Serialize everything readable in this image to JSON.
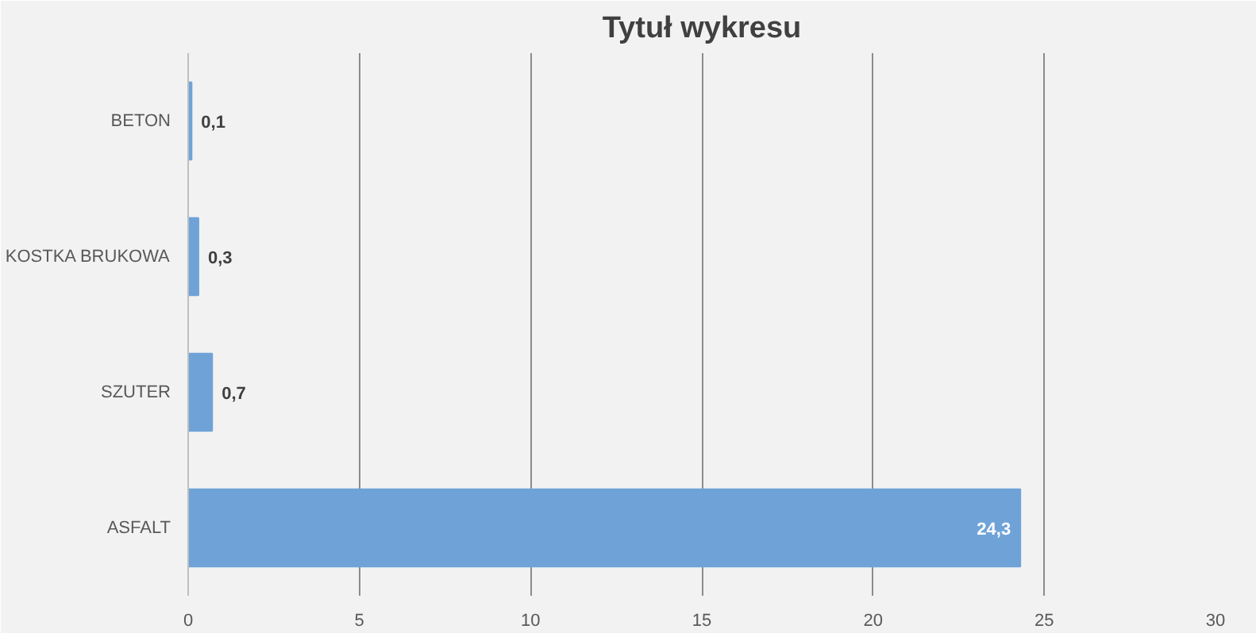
{
  "chart_data": {
    "type": "bar",
    "orientation": "horizontal",
    "title": "Tytuł wykresu",
    "categories": [
      "BETON",
      "KOSTKA BRUKOWA",
      "SZUTER",
      "ASFALT"
    ],
    "values": [
      0.1,
      0.3,
      0.7,
      24.3
    ],
    "value_labels": [
      "0,1",
      "0,3",
      "0,7",
      "24,3"
    ],
    "color": "#6fa3d8",
    "xlim": [
      0,
      30
    ],
    "xticks": [
      0,
      5,
      10,
      15,
      20,
      25,
      30
    ],
    "grid": "x"
  }
}
